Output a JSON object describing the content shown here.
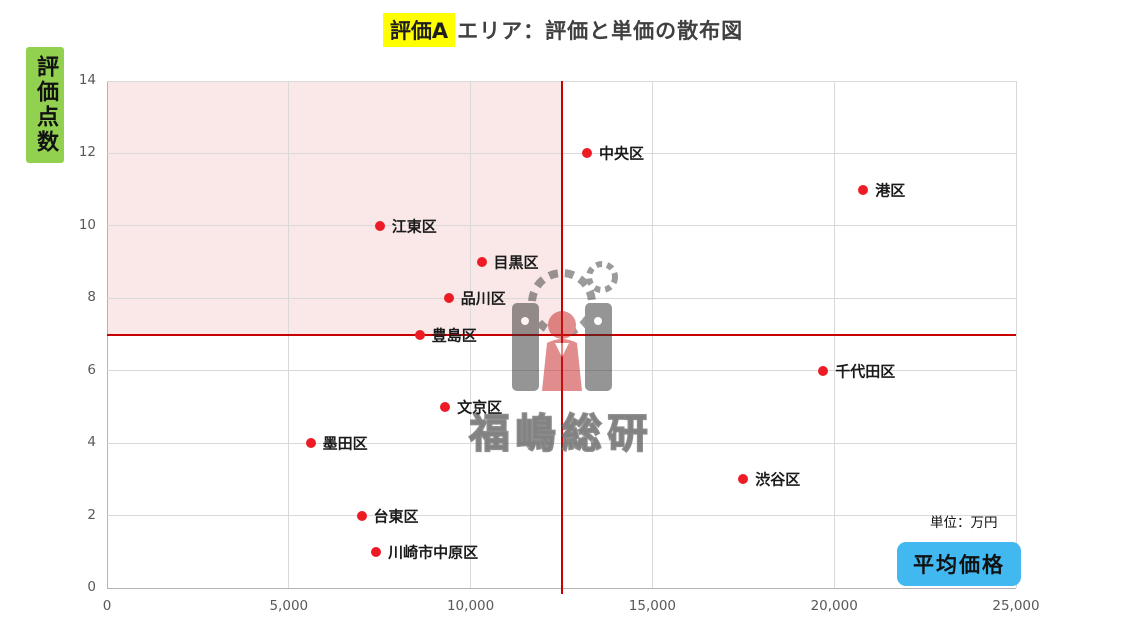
{
  "header": {
    "badge": "評価A",
    "title": "エリア：評価と単価の散布図"
  },
  "labels": {
    "y_axis": "評価点数",
    "x_axis": "平均価格",
    "unit": "単位：万円"
  },
  "watermark": {
    "text": "福嶋総研"
  },
  "colors": {
    "badge_bg": "#ffff00",
    "title_text": "#404040",
    "y_label_bg": "#92d050",
    "x_label_bg": "#41b8f0",
    "point": "#ed1c24",
    "reference_line": "#c80000",
    "shade": "#f9e8e7",
    "gridline": "#d9d9d9",
    "tick_text": "#595959"
  },
  "chart_data": {
    "type": "scatter",
    "title": "評価Aエリア：評価と単価の散布図",
    "xlabel": "平均価格",
    "ylabel": "評価点数",
    "unit": "単位：万円",
    "xlim": [
      0,
      25000
    ],
    "ylim": [
      0,
      14
    ],
    "grid": true,
    "xticks": [
      {
        "value": 0,
        "label": "0"
      },
      {
        "value": 5000,
        "label": "5,000"
      },
      {
        "value": 10000,
        "label": "10,000"
      },
      {
        "value": 15000,
        "label": "15,000"
      },
      {
        "value": 20000,
        "label": "20,000"
      },
      {
        "value": 25000,
        "label": "25,000"
      }
    ],
    "yticks": [
      {
        "value": 0,
        "label": "0"
      },
      {
        "value": 2,
        "label": "2"
      },
      {
        "value": 4,
        "label": "4"
      },
      {
        "value": 6,
        "label": "6"
      },
      {
        "value": 8,
        "label": "8"
      },
      {
        "value": 10,
        "label": "10"
      },
      {
        "value": 12,
        "label": "12"
      },
      {
        "value": 14,
        "label": "14"
      }
    ],
    "reference_lines": {
      "x": 12500,
      "y": 7
    },
    "shaded_region": {
      "x0": 0,
      "x1": 12500,
      "y0": 7,
      "y1": 14
    },
    "points": [
      {
        "name": "中央区",
        "x": 13200,
        "y": 12
      },
      {
        "name": "港区",
        "x": 20800,
        "y": 11
      },
      {
        "name": "江東区",
        "x": 7500,
        "y": 10
      },
      {
        "name": "目黒区",
        "x": 10300,
        "y": 9
      },
      {
        "name": "品川区",
        "x": 9400,
        "y": 8
      },
      {
        "name": "豊島区",
        "x": 8600,
        "y": 7
      },
      {
        "name": "千代田区",
        "x": 19700,
        "y": 6
      },
      {
        "name": "文京区",
        "x": 9300,
        "y": 5
      },
      {
        "name": "墨田区",
        "x": 5600,
        "y": 4
      },
      {
        "name": "渋谷区",
        "x": 17500,
        "y": 3
      },
      {
        "name": "台東区",
        "x": 7000,
        "y": 2
      },
      {
        "name": "川崎市中原区",
        "x": 7400,
        "y": 1
      }
    ]
  }
}
